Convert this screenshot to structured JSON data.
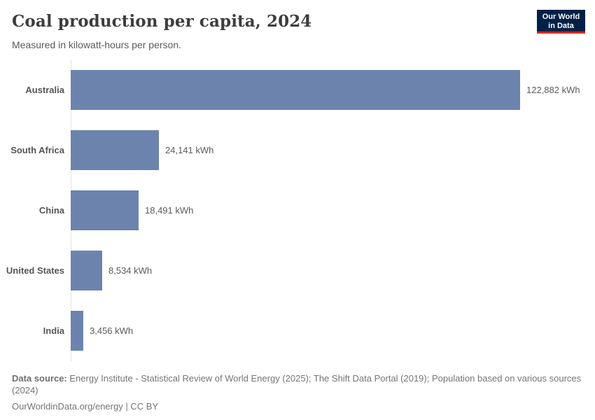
{
  "header": {
    "title": "Coal production per capita, 2024",
    "subtitle": "Measured in kilowatt-hours per person.",
    "logo": {
      "line1": "Our World",
      "line2": "in Data"
    }
  },
  "chart_data": {
    "type": "bar",
    "orientation": "horizontal",
    "title": "Coal production per capita, 2024",
    "subtitle": "Measured in kilowatt-hours per person.",
    "unit": "kWh",
    "categories": [
      "Australia",
      "South Africa",
      "China",
      "United States",
      "India"
    ],
    "values": [
      122882,
      24141,
      18491,
      8534,
      3456
    ],
    "value_labels": [
      "122,882 kWh",
      "24,141 kWh",
      "18,491 kWh",
      "8,534 kWh",
      "3,456 kWh"
    ],
    "xlim": [
      0,
      122882
    ],
    "grid": false,
    "legend": "none",
    "bar_color": "#6c83ad"
  },
  "footer": {
    "source_label": "Data source:",
    "source_text": "Energy Institute - Statistical Review of World Energy (2025); The Shift Data Portal (2019); Population based on various sources (2024)",
    "link_text": "OurWorldinData.org/energy | CC BY"
  },
  "colors": {
    "bar": "#6c83ad",
    "axis": "#e3e3e3",
    "title_text": "#3d3d3d",
    "body_text": "#5b5b5b",
    "footer_text": "#757575",
    "logo_background": "#002147",
    "logo_stripe": "#d42b21"
  }
}
